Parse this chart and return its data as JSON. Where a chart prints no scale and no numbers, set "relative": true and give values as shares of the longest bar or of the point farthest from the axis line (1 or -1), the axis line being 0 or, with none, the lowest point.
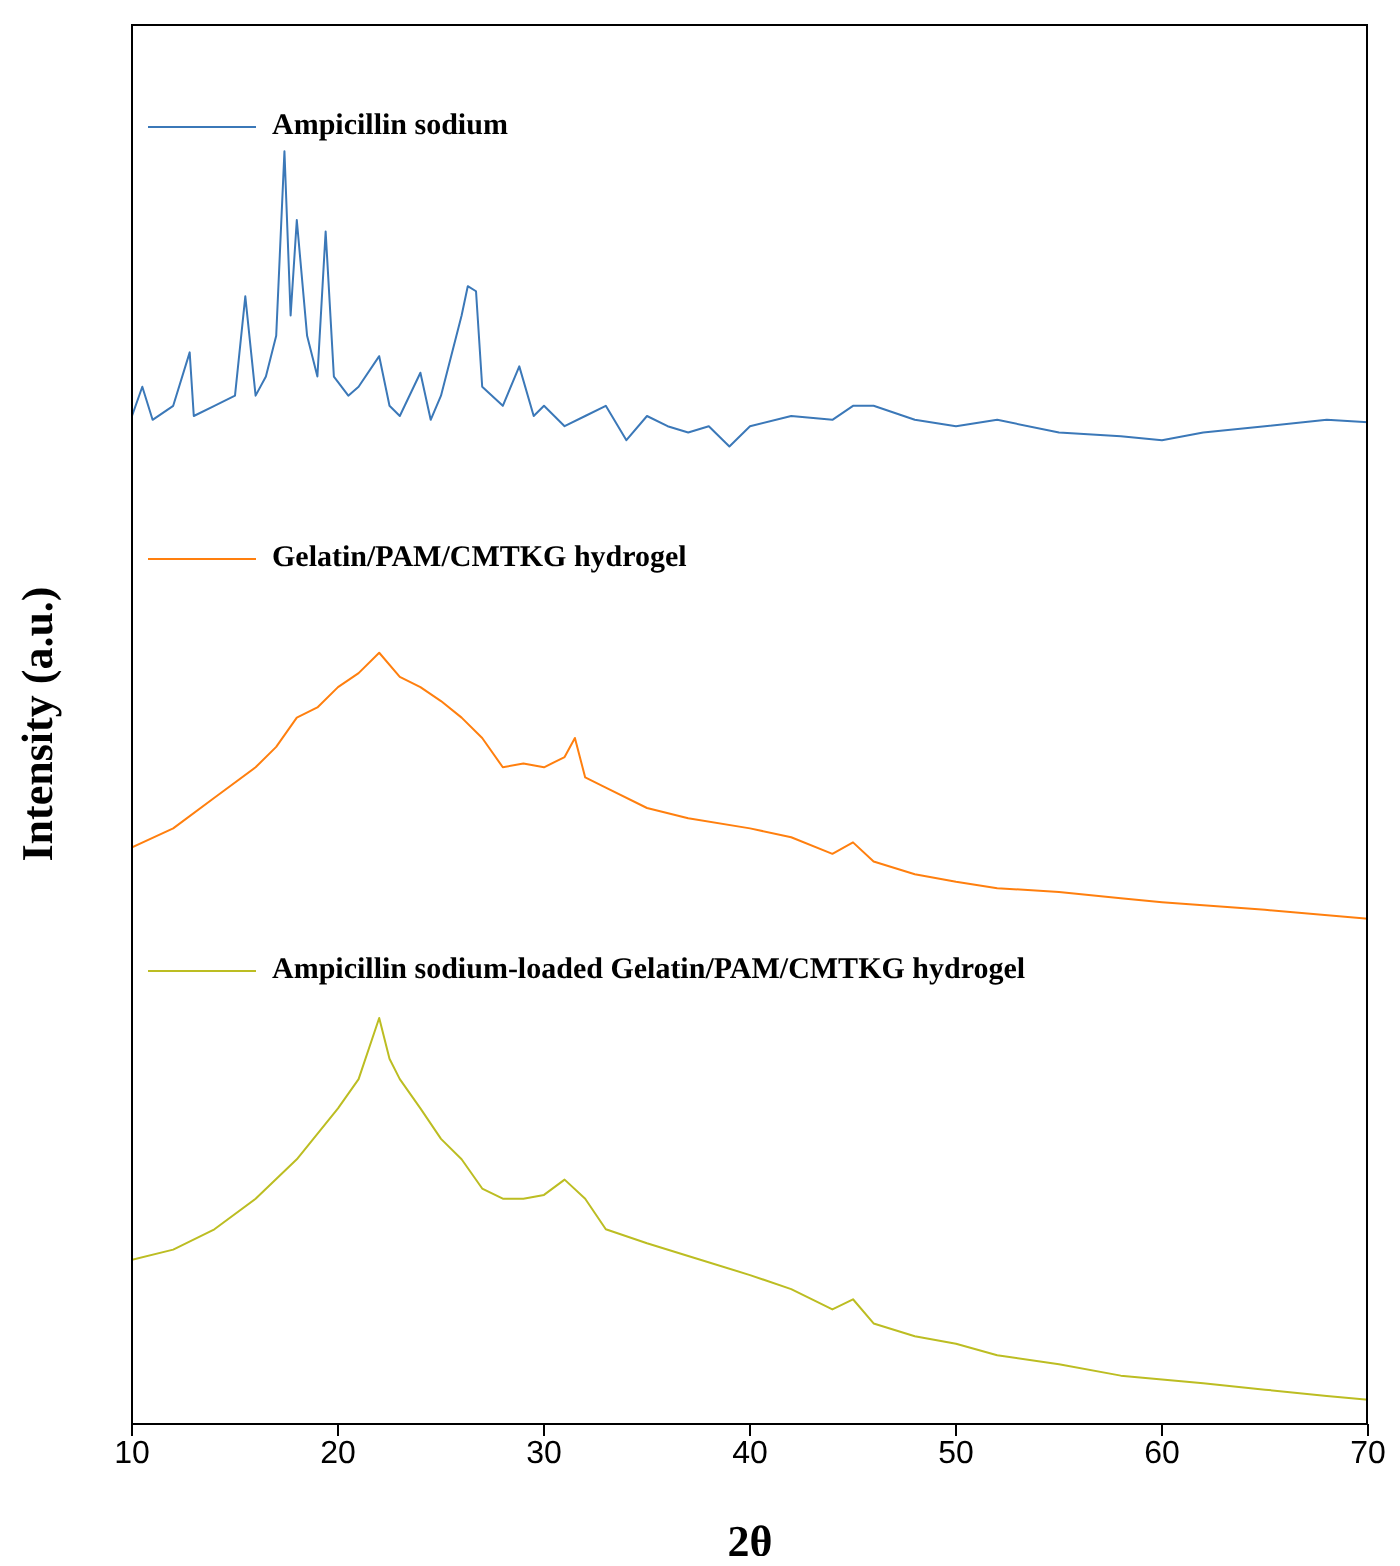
{
  "chart_data": {
    "type": "line",
    "xlabel": "2θ",
    "ylabel": "Intensity (a.u.)",
    "relative": true,
    "xlim": [
      10,
      70
    ],
    "xticks": [
      10,
      20,
      30,
      40,
      50,
      60,
      70
    ],
    "grid": false,
    "legend": "top left",
    "series": [
      {
        "name": "Ampicillin sodium",
        "color": "#3b78b8",
        "x": [
          10,
          10.5,
          11,
          12,
          12.8,
          13,
          14,
          15,
          15.5,
          16,
          16.5,
          17,
          17.4,
          17.7,
          18,
          18.5,
          19,
          19.4,
          19.8,
          20.5,
          21,
          22,
          22.5,
          23,
          24,
          24.5,
          25,
          26,
          26.3,
          26.7,
          27,
          28,
          28.8,
          29.5,
          30,
          31,
          32,
          33,
          34,
          35,
          36,
          37,
          38,
          39,
          40,
          42,
          44,
          45,
          46,
          48,
          50,
          52,
          55,
          58,
          60,
          62,
          65,
          68,
          70
        ],
        "values": [
          0.792,
          0.815,
          0.789,
          0.8,
          0.842,
          0.792,
          0.8,
          0.808,
          0.886,
          0.808,
          0.823,
          0.855,
          1,
          0.871,
          0.946,
          0.855,
          0.823,
          0.937,
          0.823,
          0.808,
          0.815,
          0.839,
          0.8,
          0.792,
          0.826,
          0.789,
          0.808,
          0.871,
          0.894,
          0.89,
          0.815,
          0.8,
          0.831,
          0.792,
          0.8,
          0.784,
          0.792,
          0.8,
          0.773,
          0.792,
          0.784,
          0.779,
          0.784,
          0.768,
          0.784,
          0.792,
          0.789,
          0.8,
          0.8,
          0.789,
          0.784,
          0.789,
          0.779,
          0.776,
          0.773,
          0.779,
          0.784,
          0.789,
          0.787
        ]
      },
      {
        "name": "Gelatin/PAM/CMTKG hydrogel",
        "color": "#ff7f0e",
        "x": [
          10,
          12,
          14,
          16,
          17,
          18,
          19,
          20,
          21,
          22,
          23,
          24,
          25,
          26,
          27,
          28,
          29,
          30,
          31,
          31.5,
          32,
          33,
          35,
          37,
          40,
          42,
          44,
          45,
          46,
          48,
          50,
          52,
          55,
          58,
          60,
          65,
          70
        ],
        "values": [
          0.453,
          0.468,
          0.492,
          0.516,
          0.532,
          0.555,
          0.563,
          0.579,
          0.59,
          0.606,
          0.587,
          0.579,
          0.568,
          0.555,
          0.539,
          0.516,
          0.519,
          0.516,
          0.524,
          0.539,
          0.508,
          0.5,
          0.484,
          0.476,
          0.468,
          0.461,
          0.448,
          0.457,
          0.442,
          0.432,
          0.426,
          0.421,
          0.418,
          0.413,
          0.41,
          0.404,
          0.397
        ]
      },
      {
        "name": "Ampicillin sodium-loaded Gelatin/PAM/CMTKG hydrogel",
        "color": "#bcbd22",
        "x": [
          10,
          12,
          14,
          16,
          18,
          20,
          21,
          22,
          22.5,
          23,
          24,
          25,
          26,
          27,
          28,
          29,
          30,
          31,
          32,
          33,
          35,
          37,
          40,
          42,
          44,
          45,
          46,
          48,
          50,
          52,
          55,
          58,
          60,
          62,
          65,
          68,
          70
        ],
        "values": [
          0.129,
          0.137,
          0.153,
          0.177,
          0.208,
          0.248,
          0.271,
          0.319,
          0.287,
          0.271,
          0.248,
          0.224,
          0.208,
          0.185,
          0.177,
          0.177,
          0.18,
          0.192,
          0.177,
          0.153,
          0.142,
          0.132,
          0.117,
          0.106,
          0.09,
          0.098,
          0.079,
          0.069,
          0.063,
          0.054,
          0.047,
          0.038,
          0.035,
          0.032,
          0.027,
          0.022,
          0.019
        ]
      }
    ]
  }
}
